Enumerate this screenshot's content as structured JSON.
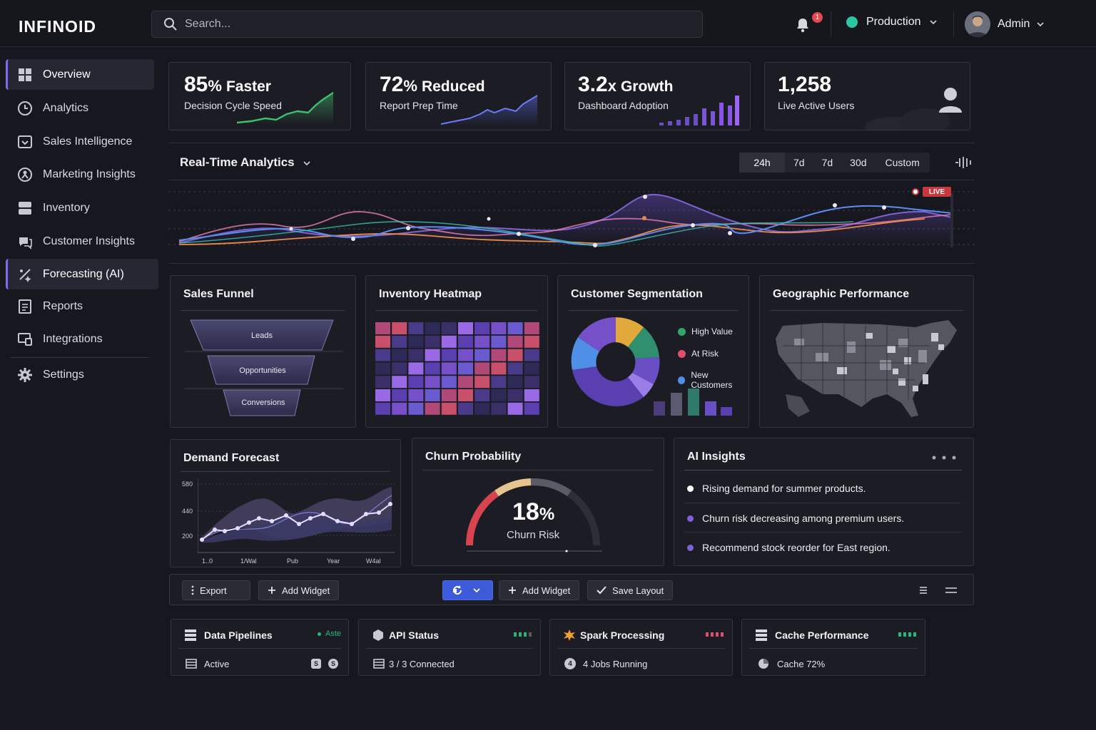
{
  "app": {
    "name": "INFINOID"
  },
  "search": {
    "placeholder": "Search..."
  },
  "header": {
    "notifications": "1",
    "environment": "Production",
    "user": "Admin"
  },
  "sidebar": {
    "items": [
      {
        "label": "Overview"
      },
      {
        "label": "Analytics"
      },
      {
        "label": "Sales Intelligence"
      },
      {
        "label": "Marketing Insights"
      },
      {
        "label": "Inventory"
      },
      {
        "label": "Customer Insights"
      },
      {
        "label": "Forecasting (AI)"
      },
      {
        "label": "Reports"
      },
      {
        "label": "Integrations"
      },
      {
        "label": "Settings"
      }
    ]
  },
  "kpis": [
    {
      "value": "85",
      "unit": "%",
      "word": "Faster",
      "label": "Decision Cycle Speed",
      "color": "#3fbf6f"
    },
    {
      "value": "72",
      "unit": "%",
      "word": "Reduced",
      "label": "Report Prep Time",
      "color": "#5b6cf0"
    },
    {
      "value": "3.2",
      "unit": "x",
      "word": "Growth",
      "label": "Dashboard Adoption",
      "color": "#8a55e6"
    },
    {
      "value": "1,258",
      "unit": "",
      "word": "",
      "label": "Live Active Users",
      "color": "#cfcfd8"
    }
  ],
  "realtime": {
    "title": "Real-Time Analytics",
    "ranges": [
      "24h",
      "7d",
      "7d",
      "30d",
      "Custom"
    ],
    "active_range": "24h",
    "live_label": "LIVE"
  },
  "sales_funnel": {
    "title": "Sales Funnel",
    "stages": [
      "Leads",
      "Opportunities",
      "Conversions"
    ]
  },
  "inventory_heatmap": {
    "title": "Inventory Heatmap"
  },
  "customer_segmentation": {
    "title": "Customer Segmentation",
    "legend": [
      {
        "label": "High Value",
        "color": "#2fa86a"
      },
      {
        "label": "At Risk",
        "color": "#e0506a"
      },
      {
        "label": "New Customers",
        "color": "#4f8fe8"
      }
    ]
  },
  "geographic": {
    "title": "Geographic Performance"
  },
  "demand_forecast": {
    "title": "Demand Forecast",
    "y_ticks": [
      "580",
      "440",
      "200"
    ],
    "x_ticks": [
      "1..0",
      "1/Wal",
      "Pub",
      "Year",
      "W4al"
    ]
  },
  "churn": {
    "title": "Churn Probability",
    "value": "18",
    "unit": "%",
    "label": "Churn Risk",
    "fraction": 0.18
  },
  "ai_insights": {
    "title": "AI Insights",
    "items": [
      {
        "text": "Rising demand for summer products.",
        "color": "#ffffff"
      },
      {
        "text": "Churn risk decreasing among premium users.",
        "color": "#7e62d6"
      },
      {
        "text": "Recommend stock reorder for East region.",
        "color": "#7e62d6"
      }
    ]
  },
  "toolbar": {
    "export": "Export",
    "add_widget": "Add Widget",
    "add_widget_2": "Add Widget",
    "save_layout": "Save Layout"
  },
  "status": [
    {
      "title": "Data Pipelines",
      "tag": "Aste",
      "value": "Active",
      "chips": [
        "S",
        "S"
      ]
    },
    {
      "title": "API Status",
      "value": "3 / 3 Connected"
    },
    {
      "title": "Spark Processing",
      "value": "4 Jobs Running"
    },
    {
      "title": "Cache Performance",
      "value": "Cache 72%"
    }
  ]
}
